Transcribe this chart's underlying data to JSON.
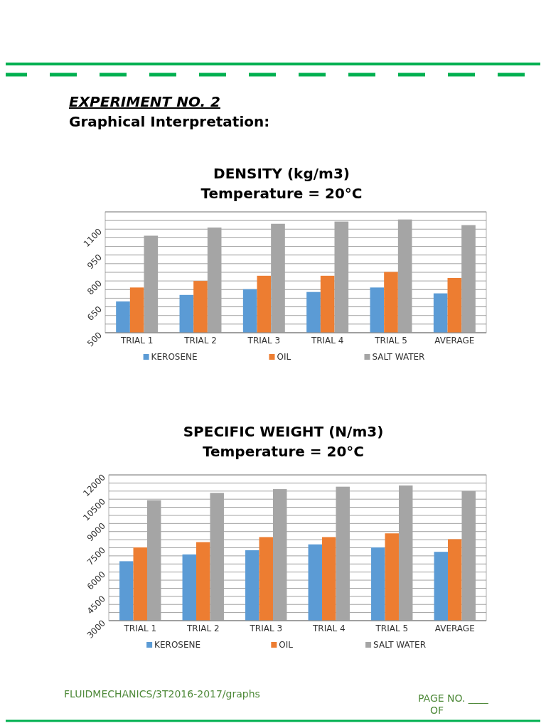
{
  "chart_data": [
    {
      "type": "bar",
      "title": "DENSITY (kg/m3)",
      "subtitle": "Temperature = 20°C",
      "annotations": [
        "EXPERIMENT NO. 2",
        "Graphical Interpretation:"
      ],
      "categories": [
        "TRIAL 1",
        "TRIAL 2",
        "TRIAL 3",
        "TRIAL 4",
        "TRIAL 5",
        "AVERAGE"
      ],
      "series": [
        {
          "name": "KEROSENE",
          "color": "#5b9bd5",
          "values": [
            681,
            719,
            752,
            736,
            762,
            728
          ]
        },
        {
          "name": "OIL",
          "color": "#ed7d31",
          "values": [
            762,
            800,
            830,
            830,
            852,
            817
          ]
        },
        {
          "name": "SALT WATER",
          "color": "#a5a5a5",
          "values": [
            1062,
            1109,
            1131,
            1144,
            1156,
            1123
          ]
        }
      ],
      "ylim": [
        500,
        1200
      ],
      "yticks": [
        500,
        {
          "value": 550,
          "label": null
        },
        {
          "value": 600,
          "label": null
        },
        650,
        {
          "value": 700,
          "label": null
        },
        {
          "value": 750,
          "label": null
        },
        800,
        {
          "value": 850,
          "label": null
        },
        {
          "value": 900,
          "label": null
        },
        950,
        {
          "value": 1000,
          "label": null
        },
        {
          "value": 1050,
          "label": null
        },
        1100,
        {
          "value": 1150,
          "label": null
        },
        {
          "value": 1200,
          "label": null
        }
      ],
      "grid": "y",
      "legend": "bottom"
    },
    {
      "type": "bar",
      "title": "SPECIFIC WEIGHT (N/m3)",
      "subtitle": "Temperature = 20°C",
      "annotations": [
        "FLUIDMECHANICS/3T2016-2017/graphs",
        "PAGE NO.  ____",
        "OF"
      ],
      "categories": [
        "TRIAL 1",
        "TRIAL 2",
        "TRIAL 3",
        "TRIAL 4",
        "TRIAL 5",
        "AVERAGE"
      ],
      "series": [
        {
          "name": "KEROSENE",
          "color": "#5b9bd5",
          "values": [
            6670,
            7090,
            7350,
            7710,
            7520,
            7250
          ]
        },
        {
          "name": "OIL",
          "color": "#ed7d31",
          "values": [
            7520,
            7850,
            8160,
            8160,
            8390,
            8030
          ]
        },
        {
          "name": "SALT WATER",
          "color": "#a5a5a5",
          "values": [
            10440,
            10890,
            11120,
            11270,
            11350,
            11000
          ]
        }
      ],
      "ylim": [
        3000,
        12000
      ],
      "yticks": [
        3000,
        {
          "value": 3500,
          "label": null
        },
        {
          "value": 4000,
          "label": null
        },
        4500,
        {
          "value": 5000,
          "label": null
        },
        {
          "value": 5500,
          "label": null
        },
        6000,
        {
          "value": 6500,
          "label": null
        },
        {
          "value": 7000,
          "label": null
        },
        7500,
        {
          "value": 8000,
          "label": null
        },
        {
          "value": 8500,
          "label": null
        },
        9000,
        {
          "value": 9500,
          "label": null
        },
        {
          "value": 10000,
          "label": null
        },
        10500,
        {
          "value": 11000,
          "label": null
        },
        {
          "value": 11500,
          "label": null
        },
        12000
      ],
      "grid": "y",
      "legend": "bottom"
    }
  ]
}
